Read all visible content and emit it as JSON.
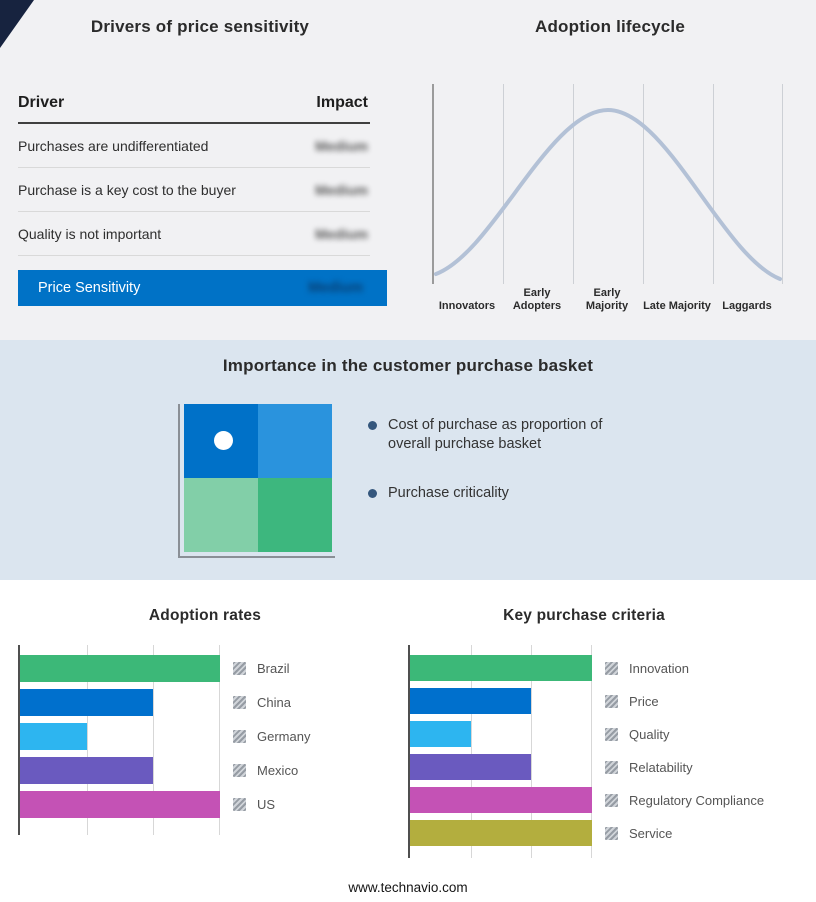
{
  "page": {
    "footer": "www.technavio.com",
    "top_section_bg": "#f1f1f3",
    "band_bg": "#dbe5ef",
    "corner_accent_color": "#17233f"
  },
  "drivers_panel": {
    "title": "Drivers of price sensitivity",
    "headers": {
      "driver": "Driver",
      "impact": "Impact"
    },
    "rows": [
      {
        "driver": "Purchases are undifferentiated",
        "impact": "Medium"
      },
      {
        "driver": "Purchase is a key cost to the buyer",
        "impact": "Medium"
      },
      {
        "driver": "Quality is not important",
        "impact": "Medium"
      }
    ],
    "summary_row": {
      "driver": "Price Sensitivity",
      "impact": "Medium"
    },
    "summary_bg": "#0072c6",
    "impact_redacted": true
  },
  "lifecycle_panel": {
    "title": "Adoption lifecycle",
    "stages": [
      "Innovators",
      "Early Adopters",
      "Early Majority",
      "Late Majority",
      "Laggards"
    ],
    "curve_color": "#b3c1d6"
  },
  "basket_panel": {
    "title": "Importance in the customer purchase basket",
    "bullets": [
      "Cost of purchase as proportion of overall purchase basket",
      "Purchase criticality"
    ],
    "bullet_color": "#35577d",
    "quadrants": {
      "top_left": "#0071c8",
      "top_right": "#2a93dd",
      "bottom_left": "#82cfa8",
      "bottom_right": "#3db77e"
    }
  },
  "adoption_chart": {
    "title": "Adoption rates"
  },
  "criteria_chart": {
    "title": "Key purchase criteria"
  },
  "chart_data": [
    {
      "id": "drivers-table",
      "type": "table",
      "title": "Drivers of price sensitivity",
      "columns": [
        "Driver",
        "Impact"
      ],
      "rows": [
        [
          "Purchases are undifferentiated",
          "Medium"
        ],
        [
          "Purchase is a key cost to the buyer",
          "Medium"
        ],
        [
          "Quality is not important",
          "Medium"
        ],
        [
          "Price Sensitivity",
          "Medium"
        ]
      ],
      "note": "Impact values appear blurred/redacted in the source image"
    },
    {
      "id": "lifecycle",
      "type": "line",
      "title": "Adoption lifecycle",
      "shape": "bell-curve",
      "categories": [
        "Innovators",
        "Early Adopters",
        "Early Majority",
        "Late Majority",
        "Laggards"
      ],
      "peak_category": "Early Majority",
      "grid": true,
      "legend_position": "none"
    },
    {
      "id": "adoption-rates",
      "type": "bar",
      "title": "Adoption rates",
      "orientation": "horizontal",
      "categories": [
        "Brazil",
        "China",
        "Germany",
        "Mexico",
        "US"
      ],
      "values": [
        3,
        2,
        1,
        2,
        3
      ],
      "xlim": [
        0,
        3
      ],
      "grid": true,
      "colors": [
        "#3cb878",
        "#0070cd",
        "#2db5f0",
        "#6a5abf",
        "#c452b5"
      ],
      "legend_position": "right"
    },
    {
      "id": "key-purchase-criteria",
      "type": "bar",
      "title": "Key purchase criteria",
      "orientation": "horizontal",
      "categories": [
        "Innovation",
        "Price",
        "Quality",
        "Relatability",
        "Regulatory Compliance",
        "Service"
      ],
      "values": [
        3,
        2,
        1,
        2,
        3,
        3
      ],
      "xlim": [
        0,
        3
      ],
      "grid": true,
      "colors": [
        "#3cb878",
        "#0070cd",
        "#2db5f0",
        "#6a5abf",
        "#c452b5",
        "#b3ae3e"
      ],
      "legend_position": "right"
    }
  ]
}
